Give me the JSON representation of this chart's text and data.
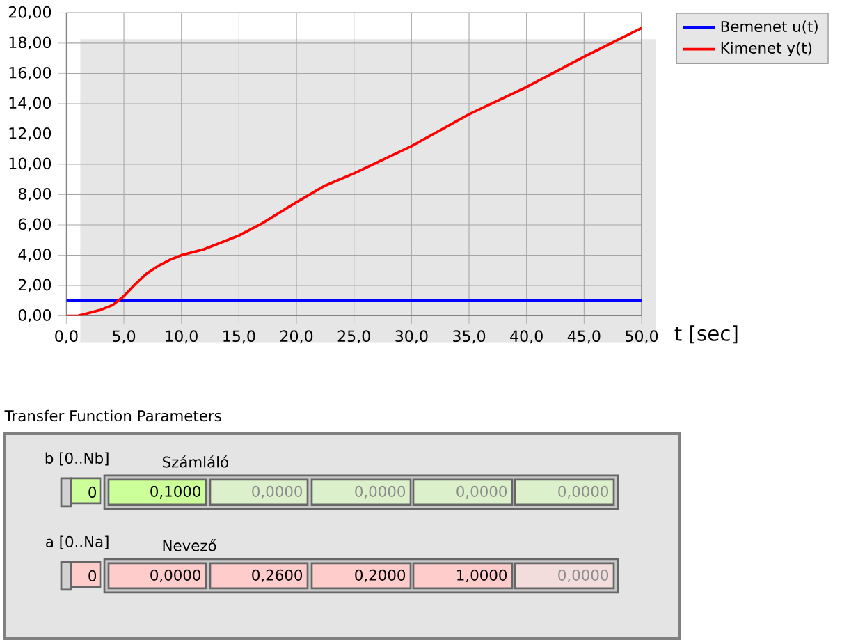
{
  "chart_data": {
    "type": "line",
    "xlabel": "t [sec]",
    "xlim": [
      0,
      50
    ],
    "ylim": [
      0,
      20
    ],
    "xticks": [
      {
        "value": 0,
        "label": "0,0"
      },
      {
        "value": 5,
        "label": "5,0"
      },
      {
        "value": 10,
        "label": "10,0"
      },
      {
        "value": 15,
        "label": "15,0"
      },
      {
        "value": 20,
        "label": "20,0"
      },
      {
        "value": 25,
        "label": "25,0"
      },
      {
        "value": 30,
        "label": "30,0"
      },
      {
        "value": 35,
        "label": "35,0"
      },
      {
        "value": 40,
        "label": "40,0"
      },
      {
        "value": 45,
        "label": "45,0"
      },
      {
        "value": 50,
        "label": "50,0"
      }
    ],
    "yticks": [
      {
        "value": 0,
        "label": "0,00"
      },
      {
        "value": 2,
        "label": "2,00"
      },
      {
        "value": 4,
        "label": "4,00"
      },
      {
        "value": 6,
        "label": "6,00"
      },
      {
        "value": 8,
        "label": "8,00"
      },
      {
        "value": 10,
        "label": "10,00"
      },
      {
        "value": 12,
        "label": "12,00"
      },
      {
        "value": 14,
        "label": "14,00"
      },
      {
        "value": 16,
        "label": "16,00"
      },
      {
        "value": 18,
        "label": "18,00"
      },
      {
        "value": 20,
        "label": "20,00"
      }
    ],
    "grid": true,
    "legend": "top right",
    "marker": "none",
    "line_style": "solid",
    "series": [
      {
        "name": "Bemenet u(t)",
        "color": "#0000ff",
        "x": [
          0,
          50
        ],
        "values": [
          1,
          1
        ]
      },
      {
        "name": "Kimenet y(t)",
        "color": "#ff0000",
        "x": [
          0,
          1,
          2,
          3,
          4,
          5,
          6,
          7,
          8,
          9,
          10,
          12,
          14,
          15,
          17,
          20,
          22.5,
          25,
          30,
          35,
          40,
          45,
          50
        ],
        "values": [
          0,
          0,
          0.2,
          0.4,
          0.7,
          1.3,
          2.1,
          2.8,
          3.3,
          3.7,
          4,
          4.4,
          5,
          5.3,
          6.1,
          7.5,
          8.6,
          9.4,
          11.2,
          13.3,
          15.1,
          17.1,
          19
        ]
      }
    ],
    "annotations": [
      "Transfer Function Parameters",
      "b [0..Nb]",
      "Számláló",
      "0",
      "0,1000",
      "0,0000",
      "0,0000",
      "0,0000",
      "0,0000",
      "a [0..Na]",
      "Nevező",
      "0",
      "0,0000",
      "0,2600",
      "0,2000",
      "1,0000",
      "0,0000"
    ]
  }
}
